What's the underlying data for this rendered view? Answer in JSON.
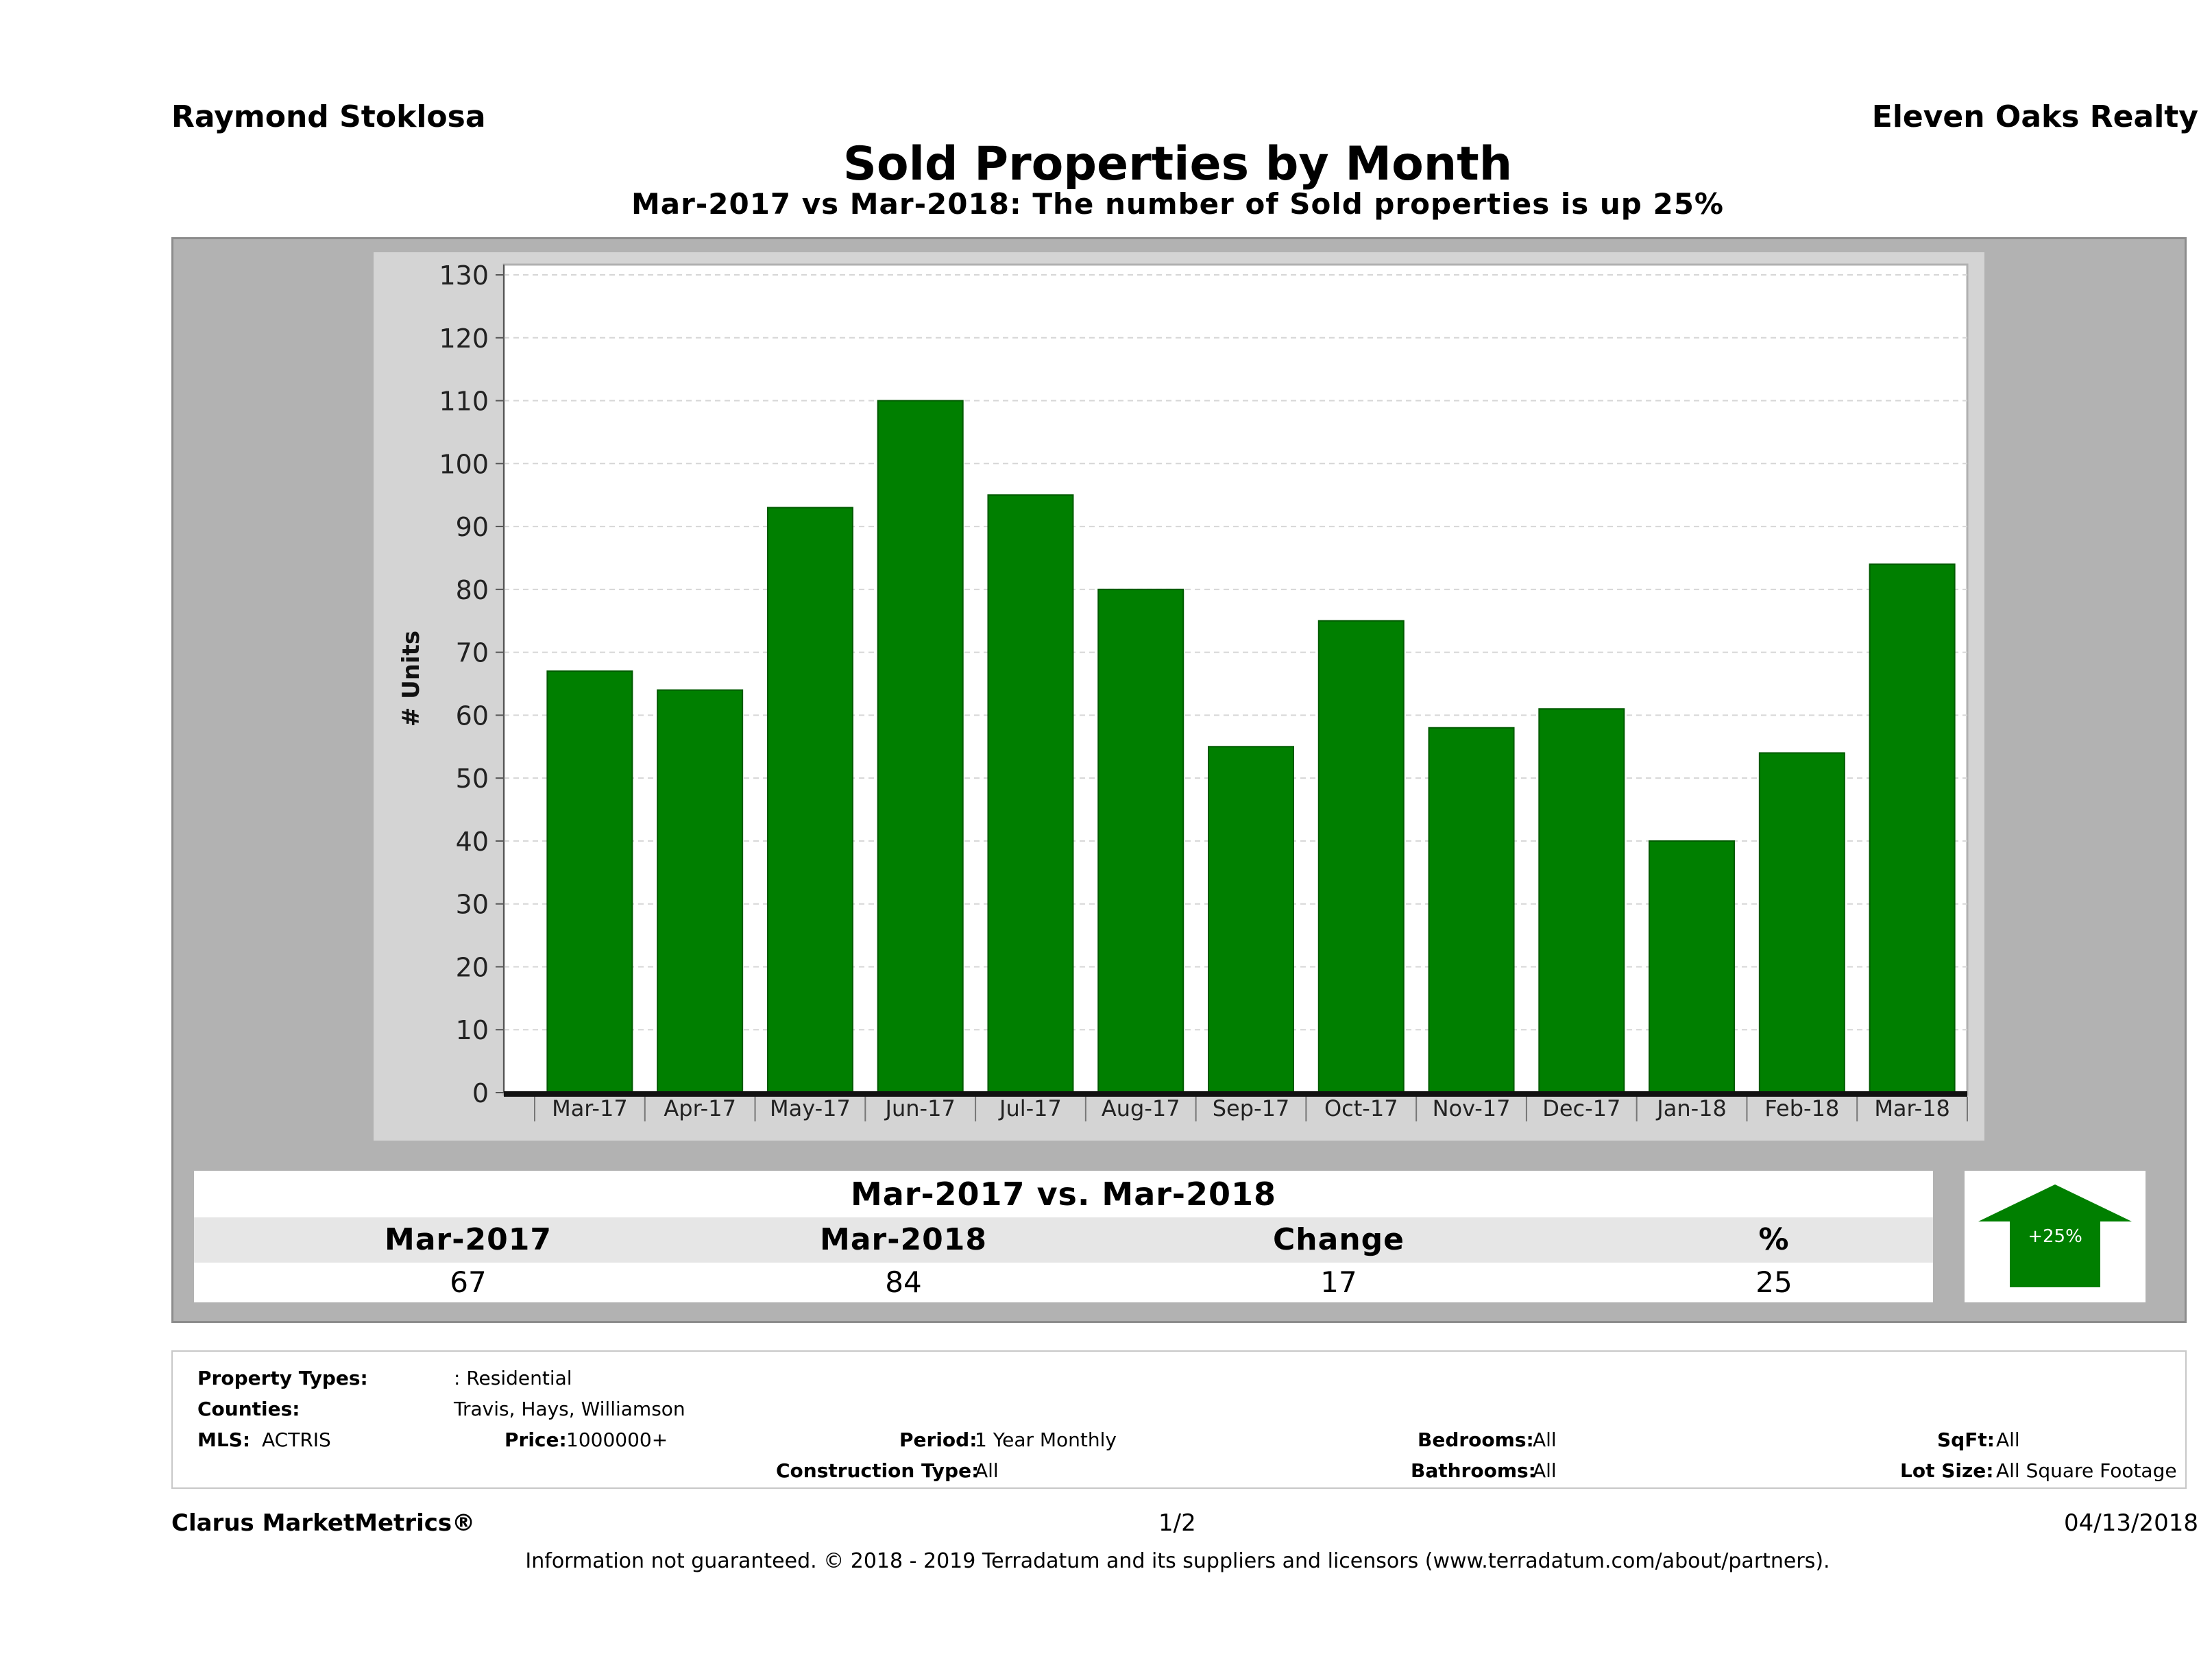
{
  "header": {
    "agent": "Raymond Stoklosa",
    "brokerage": "Eleven Oaks Realty",
    "title": "Sold Properties by Month",
    "subtitle": "Mar-2017 vs Mar-2018: The number of Sold  properties is up 25%"
  },
  "chart_data": {
    "type": "bar",
    "categories": [
      "Mar-17",
      "Apr-17",
      "May-17",
      "Jun-17",
      "Jul-17",
      "Aug-17",
      "Sep-17",
      "Oct-17",
      "Nov-17",
      "Dec-17",
      "Jan-18",
      "Feb-18",
      "Mar-18"
    ],
    "values": [
      67,
      64,
      93,
      110,
      95,
      80,
      55,
      75,
      58,
      61,
      40,
      54,
      84
    ],
    "ylabel": "# Units",
    "ylim": [
      0,
      130
    ],
    "yticks": [
      0,
      10,
      20,
      30,
      40,
      50,
      60,
      70,
      80,
      90,
      100,
      110,
      120,
      130
    ],
    "grid": true,
    "bar_color": "#007f00"
  },
  "comparison": {
    "title": "Mar-2017 vs. Mar-2018",
    "headers": [
      "Mar-2017",
      "Mar-2018",
      "Change",
      "%"
    ],
    "values": [
      "67",
      "84",
      "17",
      "25"
    ],
    "badge": "+25%",
    "badge_color": "#007f00"
  },
  "criteria": {
    "property_types_label": "Property Types:",
    "property_types_value": ": Residential",
    "counties_label": "Counties:",
    "counties_value": "Travis, Hays, Williamson",
    "mls_label": "MLS:",
    "mls_value": "ACTRIS",
    "price_label": "Price:",
    "price_value": "1000000+",
    "period_label": "Period:",
    "period_value": "1 Year Monthly",
    "construction_label": "Construction Type:",
    "construction_value": "All",
    "bedrooms_label": "Bedrooms:",
    "bedrooms_value": "All",
    "bathrooms_label": "Bathrooms:",
    "bathrooms_value": "All",
    "sqft_label": "SqFt:",
    "sqft_value": "All",
    "lot_label": "Lot Size:",
    "lot_value": "All Square Footage"
  },
  "footer": {
    "brand": "Clarus MarketMetrics®",
    "page": "1/2",
    "date": "04/13/2018",
    "disclaimer": "Information not guaranteed. © 2018 - 2019 Terradatum and its suppliers and licensors (www.terradatum.com/about/partners)."
  }
}
